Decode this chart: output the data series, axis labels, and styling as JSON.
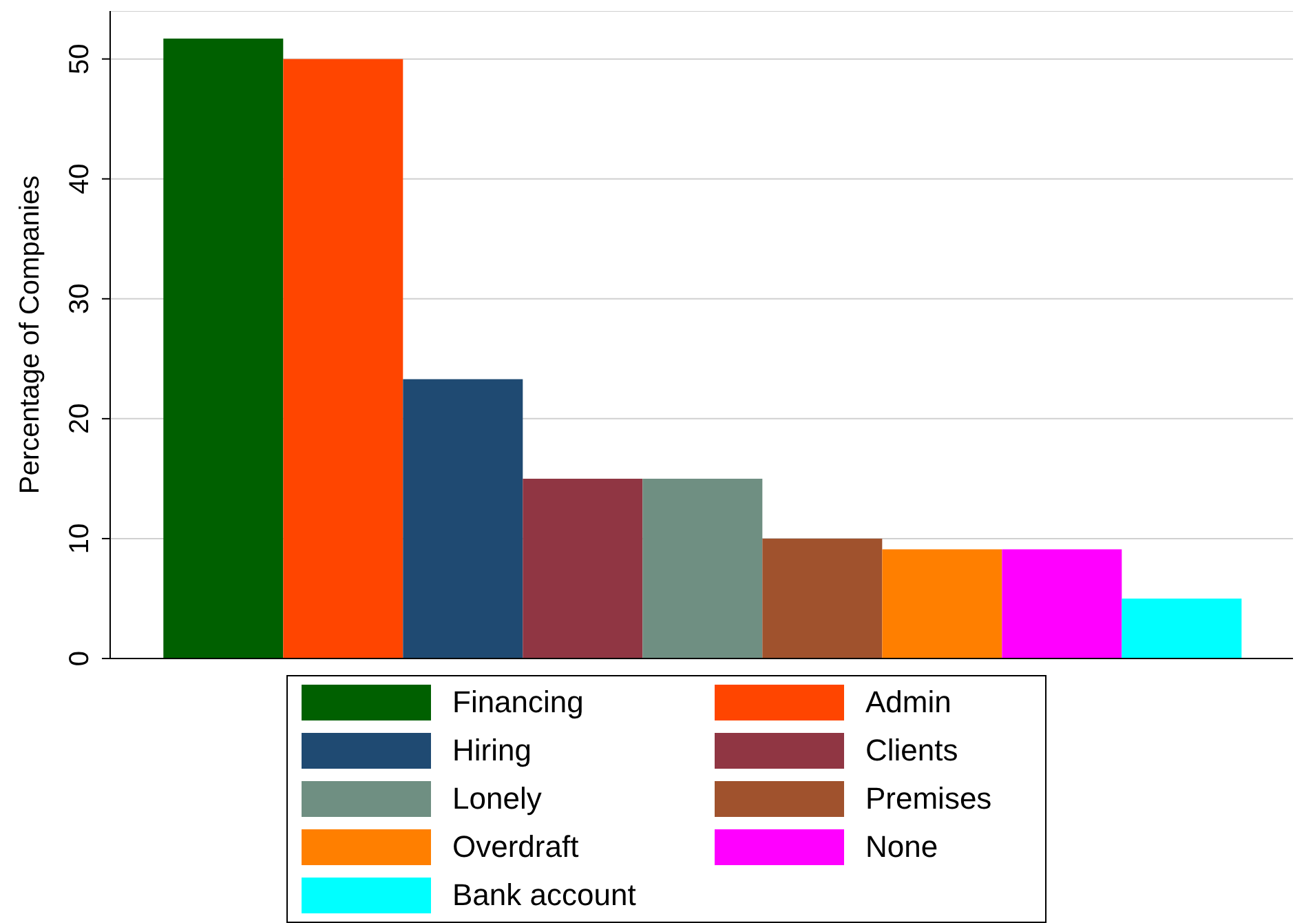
{
  "chart_data": {
    "type": "bar",
    "ylabel": "Percentage of Companies",
    "categories": [
      null
    ],
    "series": [
      {
        "name": "Financing",
        "color": "#006000",
        "values": [
          51.7
        ]
      },
      {
        "name": "Admin",
        "color": "#ff4500",
        "values": [
          50
        ]
      },
      {
        "name": "Hiring",
        "color": "#1f4a72",
        "values": [
          23.3
        ]
      },
      {
        "name": "Clients",
        "color": "#903643",
        "values": [
          15
        ]
      },
      {
        "name": "Lonely",
        "color": "#6f8f82",
        "values": [
          15
        ]
      },
      {
        "name": "Premises",
        "color": "#a0522d",
        "values": [
          10
        ]
      },
      {
        "name": "Overdraft",
        "color": "#ff7f00",
        "values": [
          9.1
        ]
      },
      {
        "name": "None",
        "color": "#ff00ff",
        "values": [
          9.1
        ]
      },
      {
        "name": "Bank account",
        "color": "#00ffff",
        "values": [
          5
        ]
      }
    ],
    "ylim": [
      0,
      54
    ],
    "yticks": [
      0,
      10,
      20,
      30,
      40,
      50
    ],
    "grid": "y",
    "legend": "bottom"
  }
}
